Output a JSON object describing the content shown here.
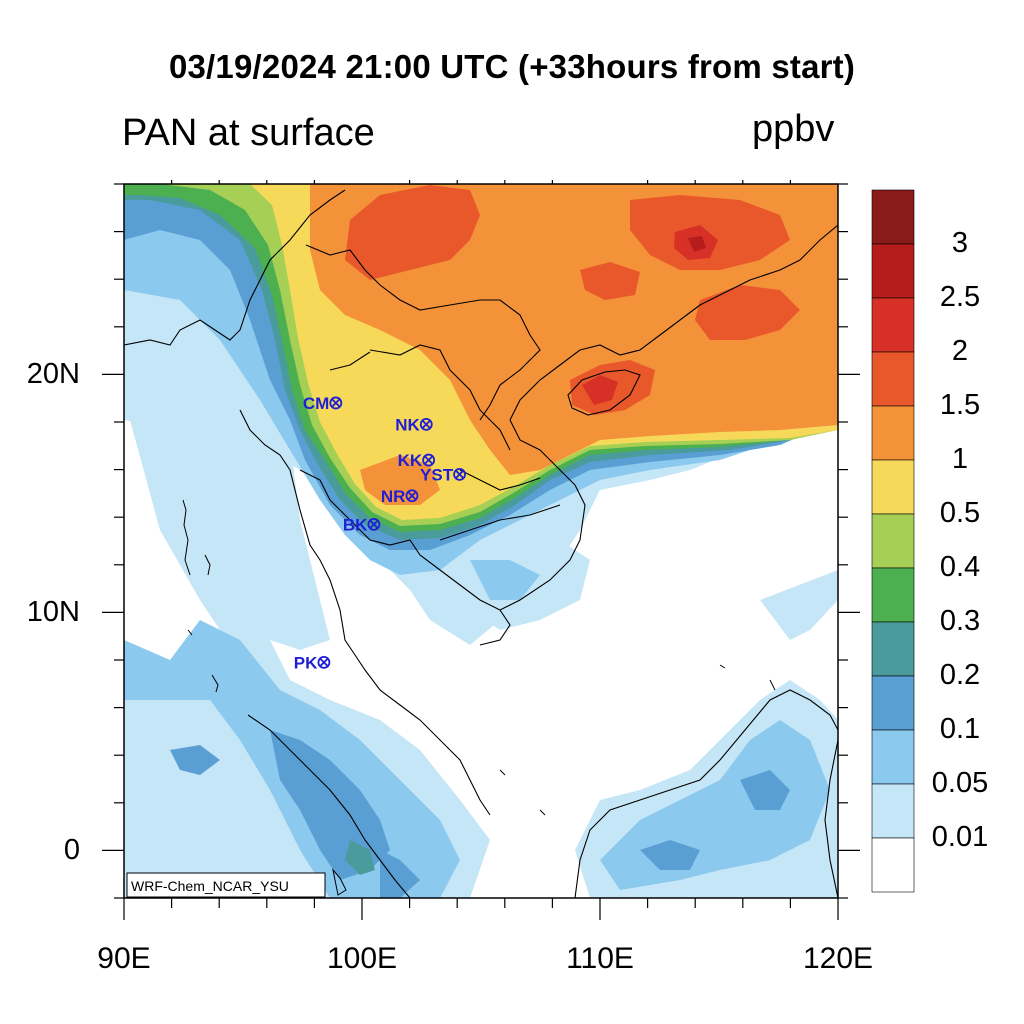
{
  "title": "03/19/2024 21:00 UTC (+33hours from start)",
  "subtitle": "PAN at surface",
  "units": "ppbv",
  "model_label": "WRF-Chem_NCAR_YSU",
  "axes": {
    "x_ticks": [
      "90E",
      "100E",
      "110E",
      "120E"
    ],
    "y_ticks": [
      "20N",
      "10N",
      "0"
    ],
    "lon_range": [
      90,
      120
    ],
    "lat_range": [
      -2,
      28
    ]
  },
  "colorbar": {
    "labels": [
      "3",
      "2.5",
      "2",
      "1.5",
      "1",
      "0.5",
      "0.4",
      "0.3",
      "0.2",
      "0.1",
      "0.05",
      "0.01"
    ],
    "colors": [
      "#8b1a1a",
      "#b71c1c",
      "#d73027",
      "#e8582a",
      "#f4923a",
      "#f7d95a",
      "#a6cf55",
      "#4caf50",
      "#4a9b9b",
      "#5a9fd4",
      "#8cc9ee",
      "#c5e6f7",
      "#ffffff"
    ]
  },
  "stations": [
    {
      "code": "CM",
      "lon": 98.9,
      "lat": 18.8
    },
    {
      "code": "NK",
      "lon": 102.7,
      "lat": 17.9
    },
    {
      "code": "KK",
      "lon": 102.8,
      "lat": 16.4
    },
    {
      "code": "YST",
      "lon": 104.1,
      "lat": 15.8
    },
    {
      "code": "NR",
      "lon": 102.1,
      "lat": 14.9
    },
    {
      "code": "BK",
      "lon": 100.5,
      "lat": 13.7
    },
    {
      "code": "PK",
      "lon": 98.4,
      "lat": 7.9
    }
  ],
  "colors": {
    "station": "#1f1fd6",
    "coast": "#000000"
  }
}
